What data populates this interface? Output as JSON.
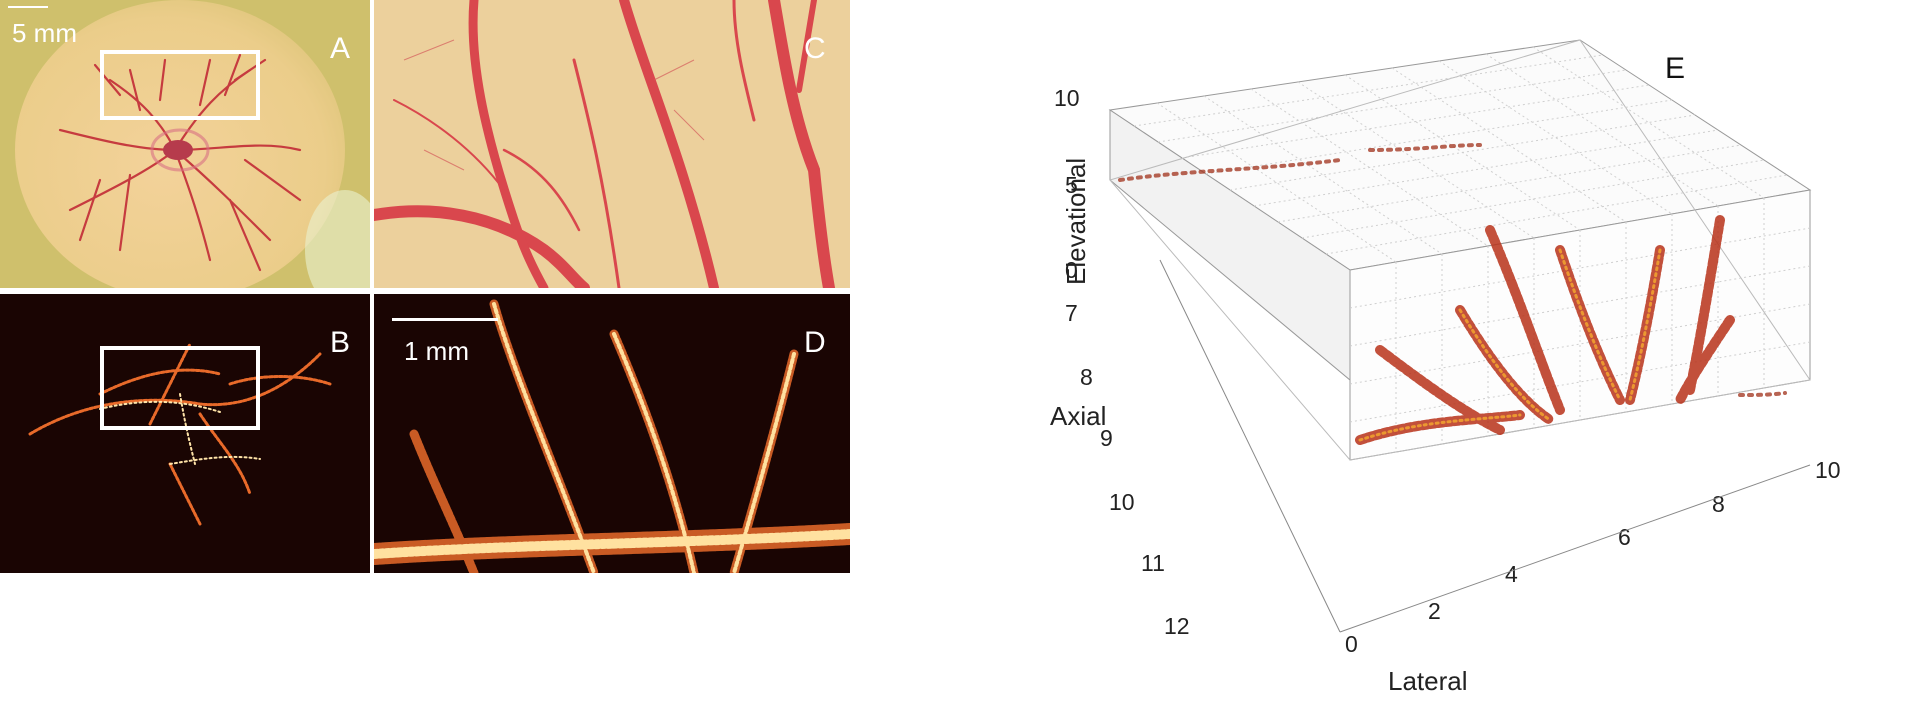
{
  "figure": {
    "panels": {
      "a": {
        "label": "A",
        "scale_text": "5 mm",
        "description_icon": "egg-embryo-photo"
      },
      "b": {
        "label": "B",
        "description_icon": "ultrasound-vascular-map"
      },
      "c": {
        "label": "C",
        "description_icon": "zoomed-vessel-photo"
      },
      "d": {
        "label": "D",
        "scale_text": "1 mm",
        "description_icon": "zoomed-ultrasound-map"
      },
      "e": {
        "label": "E",
        "axes": {
          "elevational": {
            "label": "Elevational",
            "ticks": [
              "10",
              "5",
              "0"
            ]
          },
          "axial": {
            "label": "Axial",
            "ticks": [
              "7",
              "8",
              "9",
              "10",
              "11",
              "12"
            ]
          },
          "lateral": {
            "label": "Lateral",
            "ticks": [
              "0",
              "2",
              "4",
              "6",
              "8",
              "10"
            ]
          }
        }
      }
    },
    "colors": {
      "photo_bg": "#e8c98a",
      "vessel": "#d4454a",
      "us_bg": "#1a0503",
      "us_hot": "#ffd98a",
      "us_mid": "#e05a1a"
    }
  }
}
